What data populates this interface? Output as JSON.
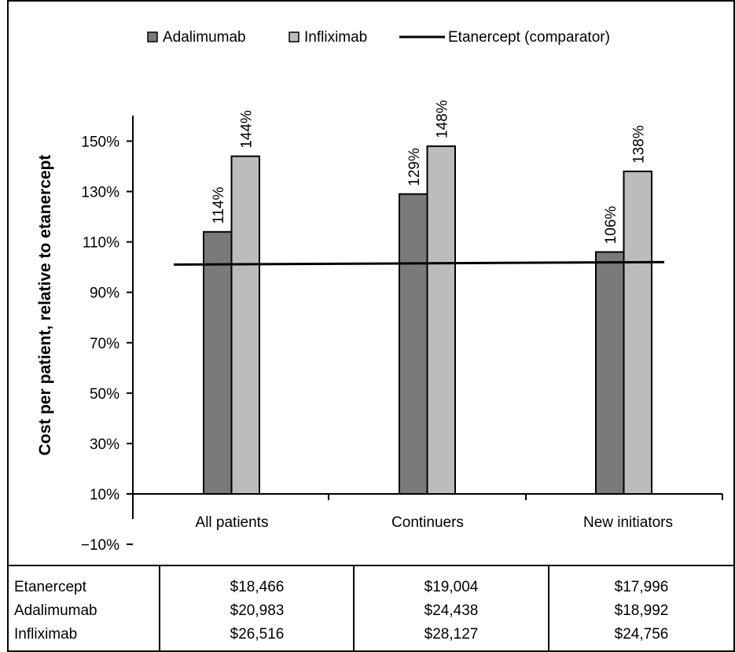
{
  "chart_data": {
    "type": "bar",
    "ylabel": "Cost per patient, relative to etanercept",
    "ylim": [
      -10,
      160
    ],
    "yticks": [
      "150%",
      "130%",
      "110%",
      "90%",
      "70%",
      "50%",
      "30%",
      "10%",
      "−10%"
    ],
    "ytick_values": [
      150,
      130,
      110,
      90,
      70,
      50,
      30,
      10,
      -10
    ],
    "categories": [
      "All patients",
      "Continuers",
      "New initiators"
    ],
    "series": [
      {
        "name": "Adalimumab",
        "values": [
          114,
          129,
          106
        ],
        "labels": [
          "114%",
          "129%",
          "106%"
        ],
        "color": "#7a7a7a"
      },
      {
        "name": "Infliximab",
        "values": [
          144,
          148,
          138
        ],
        "labels": [
          "144%",
          "148%",
          "138%"
        ],
        "color": "#bcbcbc"
      }
    ],
    "line": {
      "name": "Etanercept (comparator)",
      "values": [
        101,
        101,
        102
      ],
      "color": "#000000"
    },
    "legend_position": "top",
    "grid": false
  },
  "table": {
    "rows": [
      {
        "label": "Etanercept",
        "values": [
          "$18,466",
          "$19,004",
          "$17,996"
        ]
      },
      {
        "label": "Adalimumab",
        "values": [
          "$20,983",
          "$24,438",
          "$18,992"
        ]
      },
      {
        "label": "Infliximab",
        "values": [
          "$26,516",
          "$28,127",
          "$24,756"
        ]
      }
    ]
  }
}
